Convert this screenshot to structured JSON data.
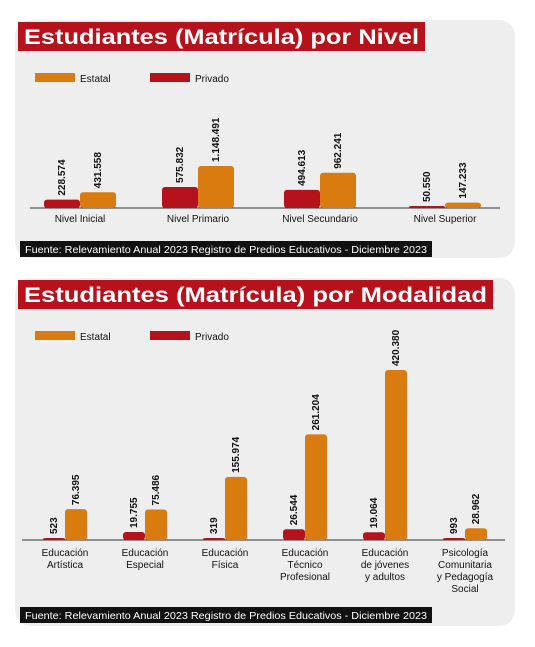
{
  "chart_data": [
    {
      "type": "bar",
      "title": "Estudiantes (Matrícula) por Nivel",
      "categories": [
        "Nivel Inicial",
        "Nivel Primario",
        "Nivel Secundario",
        "Nivel Superior"
      ],
      "series": [
        {
          "name": "Privado",
          "color": "#b5121b",
          "values": [
            228574,
            575832,
            494613,
            50550
          ],
          "value_labels": [
            "228.574",
            "575.832",
            "494.613",
            "50.550"
          ]
        },
        {
          "name": "Estatal",
          "color": "#d97b0f",
          "values": [
            431558,
            1148491,
            962241,
            147233
          ],
          "value_labels": [
            "431.558",
            "1.148.491",
            "962.241",
            "147.233"
          ]
        }
      ],
      "source": "Fuente: Relevamiento Anual 2023 Registro de Predios Educativos - Diciembre 2023"
    },
    {
      "type": "bar",
      "title": "Estudiantes (Matrícula) por Modalidad",
      "categories": [
        "Educación\nArtística",
        "Educación\nEspecial",
        "Educación\nFísica",
        "Educación\nTécnico\nProfesional",
        "Educación\nde jóvenes\ny adultos",
        "Psicología\nComunitaria\ny Pedagogía\nSocial"
      ],
      "series": [
        {
          "name": "Privado",
          "color": "#b5121b",
          "values": [
            523,
            19755,
            319,
            26544,
            19064,
            993
          ],
          "value_labels": [
            "523",
            "19.755",
            "319",
            "26.544",
            "19.064",
            "993"
          ]
        },
        {
          "name": "Estatal",
          "color": "#d97b0f",
          "values": [
            76395,
            75486,
            155974,
            261204,
            420380,
            28962
          ],
          "value_labels": [
            "76.395",
            "75.486",
            "155.974",
            "261.204",
            "420.380",
            "28.962"
          ]
        }
      ],
      "source": "Fuente: Relevamiento Anual 2023 Registro de Predios Educativos - Diciembre 2023"
    }
  ]
}
